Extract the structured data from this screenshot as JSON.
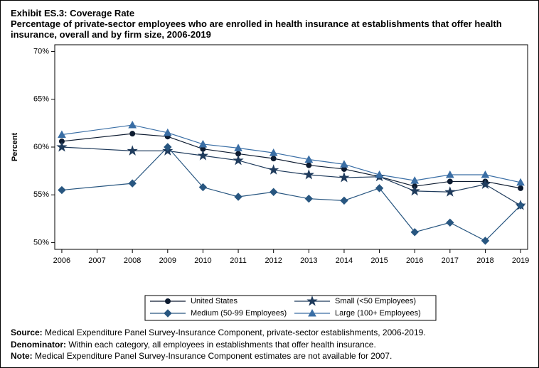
{
  "chart_data": {
    "type": "line",
    "title": "Exhibit ES.3: Coverage Rate",
    "subtitle": "Percentage of private-sector employees who are enrolled in health insurance at establishments that offer health insurance, overall and by firm size, 2006-2019",
    "y_label": "Percent",
    "x": [
      2006,
      2008,
      2009,
      2010,
      2011,
      2012,
      2013,
      2014,
      2015,
      2016,
      2017,
      2018,
      2019
    ],
    "xlim": [
      2005.8,
      2019.2
    ],
    "xticks": [
      2006,
      2007,
      2008,
      2009,
      2010,
      2011,
      2012,
      2013,
      2014,
      2015,
      2016,
      2017,
      2018,
      2019
    ],
    "ylim": [
      49.3,
      70.7
    ],
    "yticks": [
      {
        "value": 50,
        "label": "50%"
      },
      {
        "value": 55,
        "label": "55%"
      },
      {
        "value": 60,
        "label": "60%"
      },
      {
        "value": 65,
        "label": "65%"
      },
      {
        "value": 70,
        "label": "70%"
      }
    ],
    "series": [
      {
        "name": "United States",
        "color": "#0d1b30",
        "marker": "circle",
        "values": [
          60.6,
          61.4,
          61.1,
          59.8,
          59.3,
          58.8,
          58.1,
          57.7,
          56.9,
          55.9,
          56.4,
          56.4,
          55.7
        ]
      },
      {
        "name": "Small (<50 Employees)",
        "color": "#1f3b5c",
        "marker": "star",
        "values": [
          60.0,
          59.6,
          59.6,
          59.1,
          58.6,
          57.6,
          57.1,
          56.8,
          56.9,
          55.4,
          55.3,
          56.1,
          53.9
        ]
      },
      {
        "name": "Medium (50-99 Employees)",
        "color": "#285680",
        "marker": "diamond",
        "values": [
          55.5,
          56.2,
          60.0,
          55.8,
          54.8,
          55.3,
          54.6,
          54.4,
          55.7,
          51.1,
          52.1,
          50.2,
          53.9
        ]
      },
      {
        "name": "Large (100+ Employees)",
        "color": "#3a6ea5",
        "marker": "triangle",
        "values": [
          61.3,
          62.3,
          61.5,
          60.3,
          59.9,
          59.4,
          58.7,
          58.2,
          57.1,
          56.5,
          57.1,
          57.1,
          56.3
        ]
      }
    ],
    "notes": [
      {
        "label": "Source:",
        "text": "Medical Expenditure Panel Survey-Insurance Component, private-sector establishments, 2006-2019."
      },
      {
        "label": "Denominator:",
        "text": "Within each category, all employees in establishments that offer health insurance."
      },
      {
        "label": "Note:",
        "text": "Medical Expenditure Panel Survey-Insurance Component estimates are not available for 2007."
      }
    ]
  }
}
